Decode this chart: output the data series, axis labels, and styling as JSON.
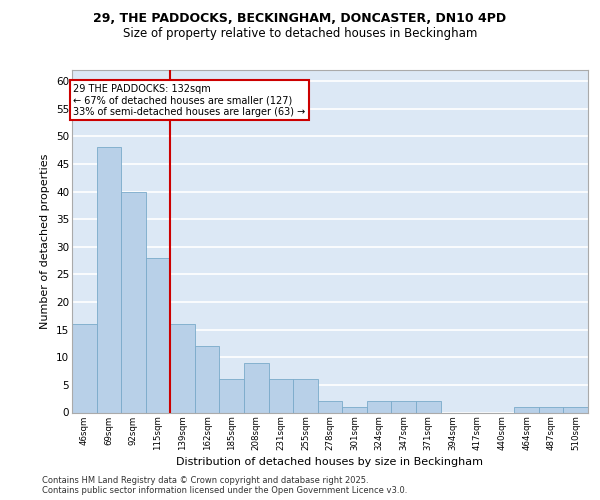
{
  "title_line1": "29, THE PADDOCKS, BECKINGHAM, DONCASTER, DN10 4PD",
  "title_line2": "Size of property relative to detached houses in Beckingham",
  "xlabel": "Distribution of detached houses by size in Beckingham",
  "ylabel": "Number of detached properties",
  "categories": [
    "46sqm",
    "69sqm",
    "92sqm",
    "115sqm",
    "139sqm",
    "162sqm",
    "185sqm",
    "208sqm",
    "231sqm",
    "255sqm",
    "278sqm",
    "301sqm",
    "324sqm",
    "347sqm",
    "371sqm",
    "394sqm",
    "417sqm",
    "440sqm",
    "464sqm",
    "487sqm",
    "510sqm"
  ],
  "values": [
    16,
    48,
    40,
    28,
    16,
    12,
    6,
    9,
    6,
    6,
    2,
    1,
    2,
    2,
    2,
    0,
    0,
    0,
    1,
    1,
    1
  ],
  "bar_color": "#b8d0e8",
  "bar_edge_color": "#7aaaca",
  "background_color": "#dce8f5",
  "grid_color": "#ffffff",
  "ref_line_index": 3.5,
  "annotation_title": "29 THE PADDOCKS: 132sqm",
  "annotation_line2": "← 67% of detached houses are smaller (127)",
  "annotation_line3": "33% of semi-detached houses are larger (63) →",
  "annotation_box_color": "#cc0000",
  "ylim": [
    0,
    62
  ],
  "yticks": [
    0,
    5,
    10,
    15,
    20,
    25,
    30,
    35,
    40,
    45,
    50,
    55,
    60
  ],
  "footer_line1": "Contains HM Land Registry data © Crown copyright and database right 2025.",
  "footer_line2": "Contains public sector information licensed under the Open Government Licence v3.0."
}
